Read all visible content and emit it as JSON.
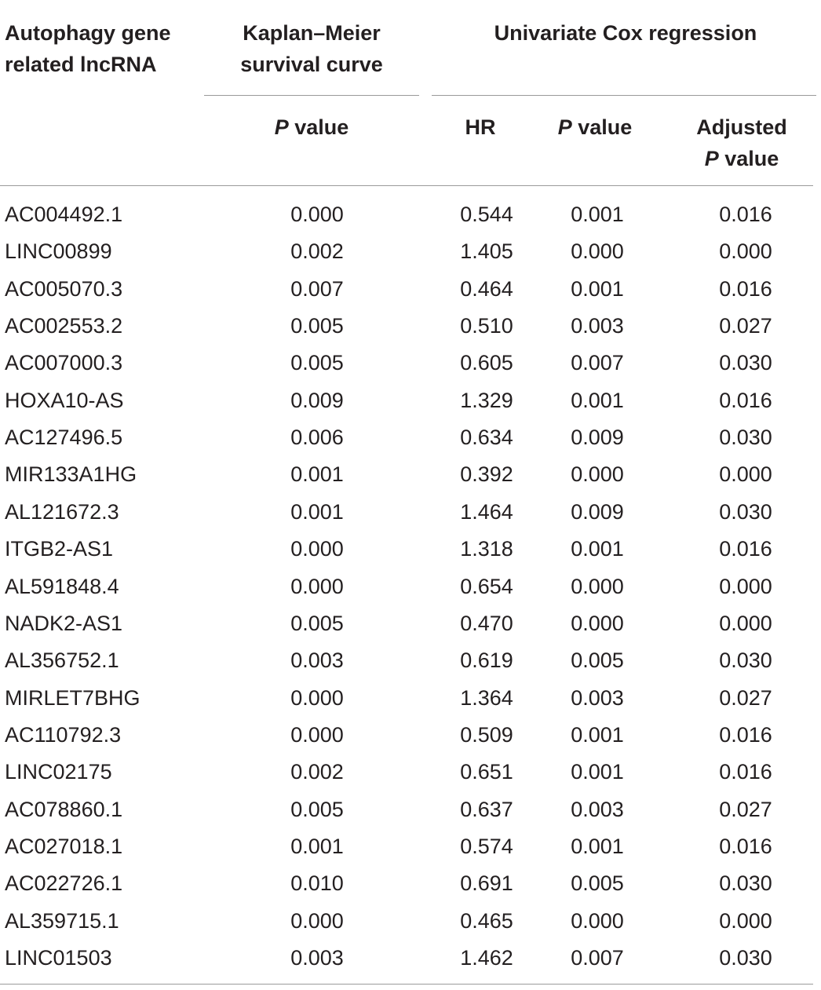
{
  "table": {
    "header": {
      "col1": [
        "Autophagy gene",
        "related lncRNA"
      ],
      "col2": [
        "Kaplan–Meier",
        "survival curve"
      ],
      "group": "Univariate Cox regression",
      "km_p_italic": "P",
      "km_p_rest": " value",
      "hr": "HR",
      "cox_p_italic": "P",
      "cox_p_rest": " value",
      "adj_line1": "Adjusted",
      "adj_p_italic": "P",
      "adj_p_rest": " value"
    },
    "rows": [
      {
        "gene": "AC004492.1",
        "km_p": "0.000",
        "hr": "0.544",
        "cox_p": "0.001",
        "adj_p": "0.016"
      },
      {
        "gene": "LINC00899",
        "km_p": "0.002",
        "hr": "1.405",
        "cox_p": "0.000",
        "adj_p": "0.000"
      },
      {
        "gene": "AC005070.3",
        "km_p": "0.007",
        "hr": "0.464",
        "cox_p": "0.001",
        "adj_p": "0.016"
      },
      {
        "gene": "AC002553.2",
        "km_p": "0.005",
        "hr": "0.510",
        "cox_p": "0.003",
        "adj_p": "0.027"
      },
      {
        "gene": "AC007000.3",
        "km_p": "0.005",
        "hr": "0.605",
        "cox_p": "0.007",
        "adj_p": "0.030"
      },
      {
        "gene": "HOXA10-AS",
        "km_p": "0.009",
        "hr": "1.329",
        "cox_p": "0.001",
        "adj_p": "0.016"
      },
      {
        "gene": "AC127496.5",
        "km_p": "0.006",
        "hr": "0.634",
        "cox_p": "0.009",
        "adj_p": "0.030"
      },
      {
        "gene": "MIR133A1HG",
        "km_p": "0.001",
        "hr": "0.392",
        "cox_p": "0.000",
        "adj_p": "0.000"
      },
      {
        "gene": "AL121672.3",
        "km_p": "0.001",
        "hr": "1.464",
        "cox_p": "0.009",
        "adj_p": "0.030"
      },
      {
        "gene": "ITGB2-AS1",
        "km_p": "0.000",
        "hr": "1.318",
        "cox_p": "0.001",
        "adj_p": "0.016"
      },
      {
        "gene": "AL591848.4",
        "km_p": "0.000",
        "hr": "0.654",
        "cox_p": "0.000",
        "adj_p": "0.000"
      },
      {
        "gene": "NADK2-AS1",
        "km_p": "0.005",
        "hr": "0.470",
        "cox_p": "0.000",
        "adj_p": "0.000"
      },
      {
        "gene": "AL356752.1",
        "km_p": "0.003",
        "hr": "0.619",
        "cox_p": "0.005",
        "adj_p": "0.030"
      },
      {
        "gene": "MIRLET7BHG",
        "km_p": "0.000",
        "hr": "1.364",
        "cox_p": "0.003",
        "adj_p": "0.027"
      },
      {
        "gene": "AC110792.3",
        "km_p": "0.000",
        "hr": "0.509",
        "cox_p": "0.001",
        "adj_p": "0.016"
      },
      {
        "gene": "LINC02175",
        "km_p": "0.002",
        "hr": "0.651",
        "cox_p": "0.001",
        "adj_p": "0.016"
      },
      {
        "gene": "AC078860.1",
        "km_p": "0.005",
        "hr": "0.637",
        "cox_p": "0.003",
        "adj_p": "0.027"
      },
      {
        "gene": "AC027018.1",
        "km_p": "0.001",
        "hr": "0.574",
        "cox_p": "0.001",
        "adj_p": "0.016"
      },
      {
        "gene": "AC022726.1",
        "km_p": "0.010",
        "hr": "0.691",
        "cox_p": "0.005",
        "adj_p": "0.030"
      },
      {
        "gene": "AL359715.1",
        "km_p": "0.000",
        "hr": "0.465",
        "cox_p": "0.000",
        "adj_p": "0.000"
      },
      {
        "gene": "LINC01503",
        "km_p": "0.003",
        "hr": "1.462",
        "cox_p": "0.007",
        "adj_p": "0.030"
      }
    ]
  }
}
